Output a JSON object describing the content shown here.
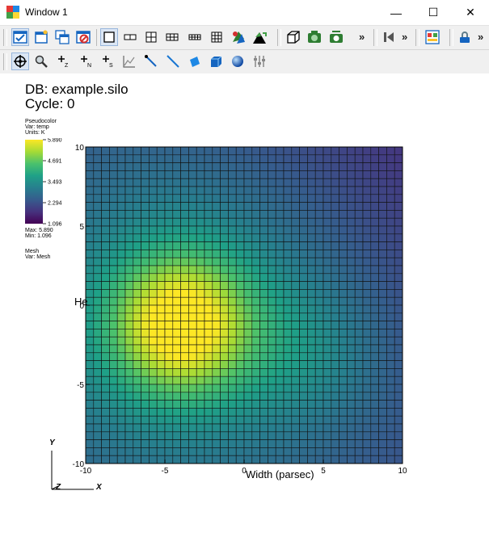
{
  "window": {
    "title": "Window 1",
    "minimize": "—",
    "maximize": "☐",
    "close": "✕"
  },
  "toolbar1": {
    "overflow1": "»",
    "overflow2": "»",
    "overflow3": "»"
  },
  "plot": {
    "db_label": "DB: example.silo",
    "cycle_label": "Cycle: 0",
    "legend": {
      "plot_type": "Pseudocolor",
      "var": "Var: temp",
      "units": "Units: K",
      "ticks": [
        "5.890",
        "4.691",
        "3.493",
        "2.294",
        "1.096"
      ],
      "max": "Max:  5.890",
      "min": "Min:  1.096",
      "colors": [
        "#fde725",
        "#a5db36",
        "#4ac16d",
        "#1fa187",
        "#277f8e",
        "#365c8d",
        "#46327e",
        "#440154"
      ]
    },
    "mesh_legend": {
      "label": "Mesh",
      "var": "Var: Mesh"
    },
    "x_ticks": [
      "-10",
      "-5",
      "0",
      "5",
      "10"
    ],
    "y_ticks": [
      "10",
      "5",
      "0",
      "-5",
      "-10"
    ],
    "xlabel": "Width (parsec)",
    "ylabel": "He",
    "triad": {
      "y": "Y",
      "z": "Z",
      "x": "X"
    }
  }
}
